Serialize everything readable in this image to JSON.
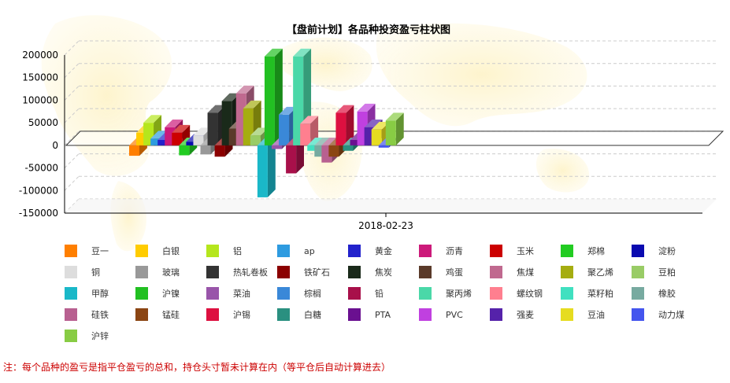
{
  "chart_data": {
    "type": "bar",
    "title": "【盘前计划】各品种投资盈亏柱状图",
    "x_category": "2018-02-23",
    "y_ticks": [
      200000,
      150000,
      100000,
      50000,
      0,
      -50000,
      -100000,
      -150000
    ],
    "ylim": [
      -150000,
      200000
    ],
    "legend_position": "bottom",
    "series": [
      {
        "name": "豆一",
        "value": -23000,
        "color": "#ff7f00"
      },
      {
        "name": "白银",
        "value": 28000,
        "color": "#ffcc00"
      },
      {
        "name": "铝",
        "value": 50000,
        "color": "#b5e61d"
      },
      {
        "name": "ap",
        "value": 15000,
        "color": "#2e9be0"
      },
      {
        "name": "黄金",
        "value": 12000,
        "color": "#2222cc"
      },
      {
        "name": "沥青",
        "value": 40000,
        "color": "#cc1a7a"
      },
      {
        "name": "玉米",
        "value": 28000,
        "color": "#cc0000"
      },
      {
        "name": "郑棉",
        "value": -22000,
        "color": "#22cc22"
      },
      {
        "name": "淀粉",
        "value": 8000,
        "color": "#0a0ab0"
      },
      {
        "name": "铜",
        "value": 22000,
        "color": "#dddddd"
      },
      {
        "name": "玻璃",
        "value": -20000,
        "color": "#999999"
      },
      {
        "name": "热轧卷板",
        "value": 72000,
        "color": "#333333"
      },
      {
        "name": "铁矿石",
        "value": -25000,
        "color": "#8b0000"
      },
      {
        "name": "焦炭",
        "value": 98000,
        "color": "#1a2a1a"
      },
      {
        "name": "鸡蛋",
        "value": 37000,
        "color": "#5a3a2a"
      },
      {
        "name": "焦煤",
        "value": 115000,
        "color": "#c0698f"
      },
      {
        "name": "聚乙烯",
        "value": 82000,
        "color": "#a5ad10"
      },
      {
        "name": "豆粕",
        "value": 22000,
        "color": "#99cc66"
      },
      {
        "name": "甲醇",
        "value": -115000,
        "color": "#1ab8c8"
      },
      {
        "name": "沪镍",
        "value": 197000,
        "color": "#22c022"
      },
      {
        "name": "菜油",
        "value": -8000,
        "color": "#9955aa"
      },
      {
        "name": "棕榈",
        "value": 68000,
        "color": "#3a88d8"
      },
      {
        "name": "铅",
        "value": -62000,
        "color": "#a8104a"
      },
      {
        "name": "聚丙烯",
        "value": 197000,
        "color": "#4ad8a8"
      },
      {
        "name": "螺纹钢",
        "value": 48000,
        "color": "#ff7f8f"
      },
      {
        "name": "菜籽粕",
        "value": -12000,
        "color": "#40e0c0"
      },
      {
        "name": "橡胶",
        "value": -25000,
        "color": "#77aaa0"
      },
      {
        "name": "硅铁",
        "value": -38000,
        "color": "#b86090"
      },
      {
        "name": "锰硅",
        "value": -25000,
        "color": "#8b4513"
      },
      {
        "name": "沪锡",
        "value": 72000,
        "color": "#dd1040"
      },
      {
        "name": "白糖",
        "value": -12000,
        "color": "#2a9080"
      },
      {
        "name": "PTA",
        "value": 12000,
        "color": "#6a1090"
      },
      {
        "name": "PVC",
        "value": 75000,
        "color": "#c040e0"
      },
      {
        "name": "强麦",
        "value": 40000,
        "color": "#5522aa"
      },
      {
        "name": "豆油",
        "value": 35000,
        "color": "#e6dc20"
      },
      {
        "name": "动力煤",
        "value": -5000,
        "color": "#4455ee"
      },
      {
        "name": "沪锌",
        "value": 55000,
        "color": "#88cc44"
      }
    ]
  },
  "note": "注：每个品种的盈亏是指平仓盈亏的总和，持仓头寸暂未计算在内（等平仓后自动计算进去）"
}
